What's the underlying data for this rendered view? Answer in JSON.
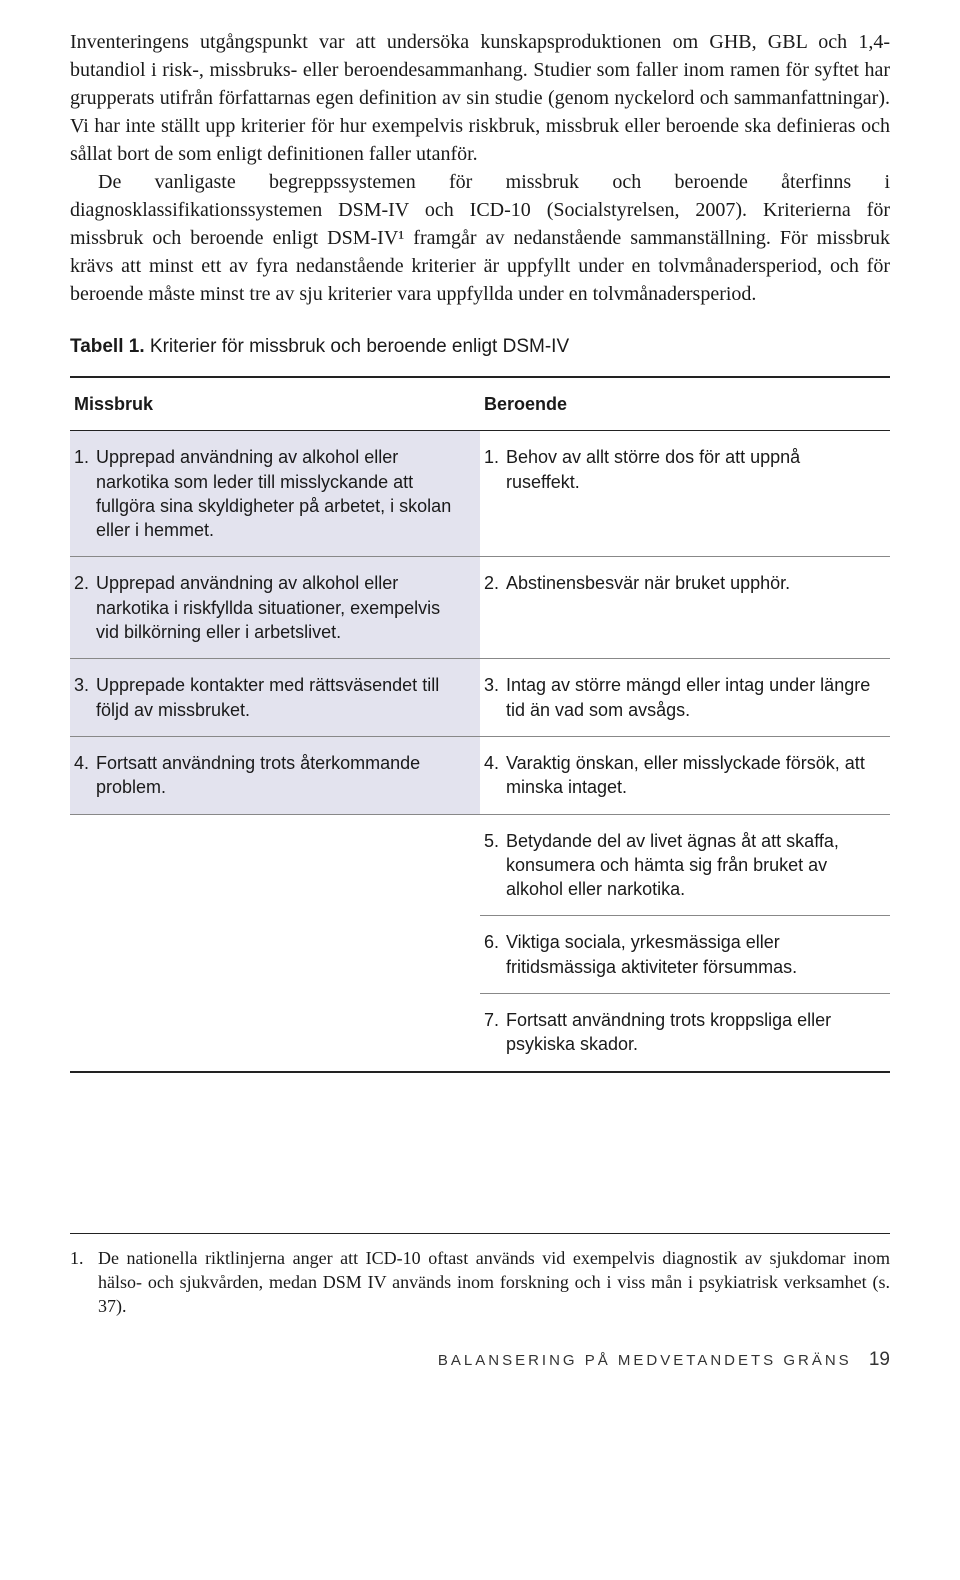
{
  "paragraphs": [
    "Inventeringens utgångspunkt var att undersöka kunskapsproduktionen om GHB, GBL och 1,4-butandiol i risk-, missbruks- eller beroendesammanhang. Studier som faller inom ramen för syftet har grupperats utifrån författarnas egen definition av sin studie (genom nyckelord och sammanfattningar). Vi har inte ställt upp kriterier för hur exempelvis riskbruk, missbruk eller beroende ska definieras och sållat bort de som enligt definitionen faller utanför.",
    "De vanligaste begreppssystemen för missbruk och beroende återfinns i diagnosklassifikationssystemen DSM-IV och ICD-10 (Socialstyrelsen, 2007). Kriterierna för missbruk och beroende enligt DSM-IV¹ framgår av nedanstående sammanställning. För missbruk krävs att minst ett av fyra nedanstående kriterier är uppfyllt under en tolvmånadersperiod, och för beroende måste minst tre av sju kriterier vara uppfyllda under en tolvmånadersperiod."
  ],
  "table": {
    "title_bold": "Tabell 1.",
    "title_rest": " Kriterier för missbruk och beroende enligt DSM-IV",
    "headers": [
      "Missbruk",
      "Beroende"
    ],
    "rows": [
      {
        "left": {
          "n": "1.",
          "t": "Upprepad användning av alkohol eller narkotika som leder till misslyckande att fullgöra sina skyldigheter på arbetet, i skolan eller i hemmet."
        },
        "right": {
          "n": "1.",
          "t": "Behov av allt större dos för att uppnå ruseffekt."
        }
      },
      {
        "left": {
          "n": "2.",
          "t": "Upprepad användning av alkohol eller narkotika i riskfyllda situationer, exempelvis vid bilkörning eller i arbetslivet."
        },
        "right": {
          "n": "2.",
          "t": "Abstinensbesvär när bruket upphör."
        }
      },
      {
        "left": {
          "n": "3.",
          "t": "Upprepade kontakter med rättsväsendet till följd av missbruket."
        },
        "right": {
          "n": "3.",
          "t": "Intag av större mängd eller intag under längre tid än vad som avsågs."
        }
      },
      {
        "left": {
          "n": "4.",
          "t": "Fortsatt användning trots återkommande problem."
        },
        "right": {
          "n": "4.",
          "t": "Varaktig önskan, eller misslyckade försök, att minska intaget."
        }
      },
      {
        "left": null,
        "right": {
          "n": "5.",
          "t": "Betydande del av livet ägnas åt att skaffa, konsumera och hämta sig från bruket av alkohol eller narkotika."
        }
      },
      {
        "left": null,
        "right": {
          "n": "6.",
          "t": "Viktiga sociala, yrkesmässiga eller fritidsmässiga aktiviteter försummas."
        }
      },
      {
        "left": null,
        "right": {
          "n": "7.",
          "t": "Fortsatt användning trots kroppsliga eller psykiska skador."
        }
      }
    ]
  },
  "footnote": {
    "n": "1.",
    "t": "De nationella riktlinjerna anger att ICD-10 oftast används vid exempelvis diagnostik av sjukdomar inom hälso- och sjukvården, medan DSM IV används inom forskning och i viss mån i psykiatrisk verksamhet (s. 37)."
  },
  "footer": {
    "title": "BALANSERING PÅ MEDVETANDETS GRÄNS",
    "page": "19"
  }
}
